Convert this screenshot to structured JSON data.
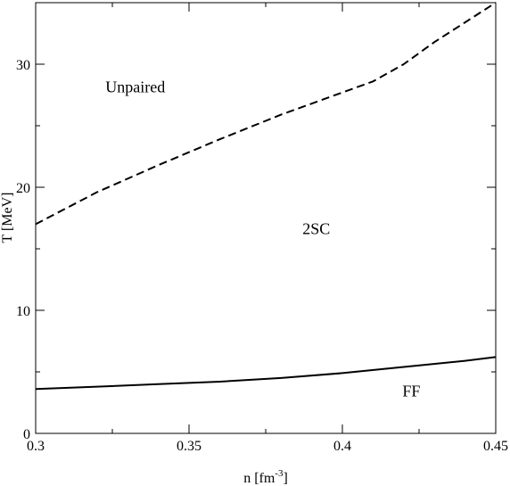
{
  "chart_data": {
    "type": "line",
    "title": "",
    "xlabel": {
      "base": "n [fm",
      "sup": "-3",
      "close": "]"
    },
    "ylabel": "T [MeV]",
    "xlim": [
      0.3,
      0.45
    ],
    "ylim": [
      0,
      35
    ],
    "x_major_ticks": [
      0.3,
      0.35,
      0.4,
      0.45
    ],
    "x_tick_labels": [
      "0.3",
      "0.35",
      "0.4",
      "0.45"
    ],
    "x_minor_ticks": [
      0.325,
      0.375,
      0.425
    ],
    "y_major_ticks": [
      0,
      10,
      20,
      30
    ],
    "y_tick_labels": [
      "0",
      "10",
      "20",
      "30"
    ],
    "y_minor_ticks": [
      5,
      15,
      25
    ],
    "grid": false,
    "series": [
      {
        "style": "dashed",
        "x": [
          0.3,
          0.32,
          0.34,
          0.36,
          0.38,
          0.4,
          0.41,
          0.42,
          0.43,
          0.44,
          0.45
        ],
        "y": [
          17.0,
          19.6,
          21.8,
          23.9,
          25.9,
          27.7,
          28.6,
          30.0,
          31.8,
          33.4,
          35.0
        ]
      },
      {
        "style": "solid",
        "x": [
          0.3,
          0.32,
          0.34,
          0.36,
          0.38,
          0.4,
          0.42,
          0.44,
          0.45
        ],
        "y": [
          3.6,
          3.8,
          4.0,
          4.2,
          4.5,
          4.9,
          5.4,
          5.9,
          6.2
        ]
      }
    ],
    "region_labels": [
      {
        "text": "Unpaired",
        "x": 0.3325,
        "y": 27.7
      },
      {
        "text": "2SC",
        "x": 0.3915,
        "y": 16.2
      },
      {
        "text": "FF",
        "x": 0.4225,
        "y": 3.0
      }
    ]
  }
}
